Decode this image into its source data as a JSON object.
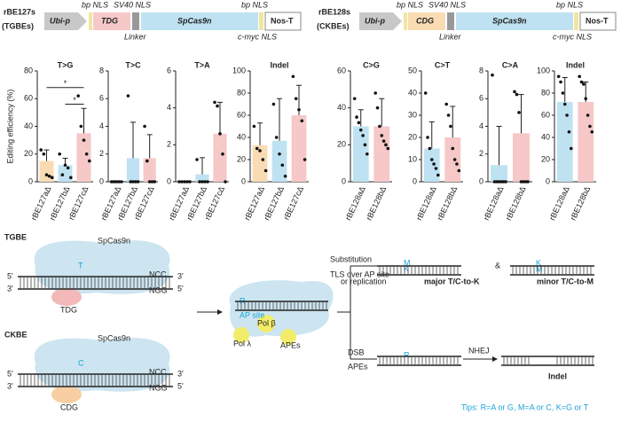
{
  "constructs": [
    {
      "name": "rBE127s",
      "sub": "(TGBEs)",
      "promoter": "Ubi-p",
      "enzyme": "TDG",
      "cas": "SpCas9n",
      "term": "Nos-T",
      "above": [
        "bp NLS",
        "SV40 NLS",
        "bp NLS"
      ],
      "below": [
        "Linker",
        "c-myc NLS"
      ]
    },
    {
      "name": "rBE128s",
      "sub": "(CKBEs)",
      "promoter": "Ubi-p",
      "enzyme": "CDG",
      "cas": "SpCas9n",
      "term": "Nos-T",
      "above": [
        "bp NLS",
        "SV40 NLS",
        "bp NLS"
      ],
      "below": [
        "Linker",
        "c-myc NLS"
      ]
    }
  ],
  "chart_data": [
    {
      "type": "bar",
      "title": "T>G",
      "ylabel": "Editing efficiency (%)",
      "categories": [
        "rBE127aΔ",
        "rBE127bΔ",
        "rBE127cΔ"
      ],
      "values": [
        15,
        12,
        35
      ],
      "errors": [
        8,
        5,
        18
      ],
      "colors": [
        "#f9dcb4",
        "#bfe2f2",
        "#f6c8c8"
      ],
      "points": [
        [
          23,
          20,
          5,
          4,
          3
        ],
        [
          20,
          5,
          12,
          10,
          3
        ],
        [
          62,
          40,
          30,
          20,
          15
        ]
      ],
      "ylim": [
        0,
        80
      ],
      "yticks": [
        0,
        20,
        40,
        60,
        80
      ],
      "annotations": [
        "*",
        "*"
      ]
    },
    {
      "type": "bar",
      "title": "T>C",
      "categories": [
        "rBE127aΔ",
        "rBE127bΔ",
        "rBE127cΔ"
      ],
      "values": [
        0,
        1.7,
        1.7
      ],
      "errors": [
        0,
        2.6,
        1.7
      ],
      "colors": [
        "#f9dcb4",
        "#bfe2f2",
        "#f6c8c8"
      ],
      "points": [
        [
          0,
          0,
          0,
          0,
          0
        ],
        [
          6.2,
          0,
          0,
          0,
          0
        ],
        [
          4,
          1.5,
          0,
          0,
          0
        ]
      ],
      "ylim": [
        0,
        8
      ],
      "yticks": [
        0,
        2,
        4,
        6,
        8
      ]
    },
    {
      "type": "bar",
      "title": "T>A",
      "categories": [
        "rBE127aΔ",
        "rBE127bΔ",
        "rBE127cΔ"
      ],
      "values": [
        0,
        0.4,
        2.6
      ],
      "errors": [
        0,
        0.9,
        1.7
      ],
      "colors": [
        "#f9dcb4",
        "#bfe2f2",
        "#f6c8c8"
      ],
      "points": [
        [
          0,
          0,
          0,
          0,
          0
        ],
        [
          1.2,
          0,
          0,
          0,
          0
        ],
        [
          4.3,
          4.1,
          2.6,
          1.5,
          0
        ]
      ],
      "ylim": [
        0,
        6
      ],
      "yticks": [
        0,
        2,
        4,
        6
      ]
    },
    {
      "type": "bar",
      "title": "Indel",
      "categories": [
        "rBE127aΔ",
        "rBE127bΔ",
        "rBE127cΔ"
      ],
      "values": [
        33,
        37,
        60
      ],
      "errors": [
        20,
        38,
        27
      ],
      "colors": [
        "#f9dcb4",
        "#bfe2f2",
        "#f6c8c8"
      ],
      "points": [
        [
          50,
          30,
          28,
          20,
          10
        ],
        [
          70,
          40,
          25,
          15,
          5
        ],
        [
          95,
          75,
          65,
          55,
          20
        ]
      ],
      "ylim": [
        0,
        100
      ],
      "yticks": [
        0,
        20,
        40,
        60,
        80,
        100
      ]
    },
    {
      "type": "bar",
      "title": "C>G",
      "categories": [
        "rBE128aΔ",
        "rBE128bΔ"
      ],
      "values": [
        30,
        30
      ],
      "errors": [
        9,
        15
      ],
      "colors": [
        "#bfe2f2",
        "#f6c8c8"
      ],
      "points": [
        [
          45,
          35,
          32,
          28,
          25,
          20,
          15
        ],
        [
          48,
          40,
          30,
          25,
          22,
          20,
          18
        ]
      ],
      "ylim": [
        0,
        60
      ],
      "yticks": [
        0,
        20,
        40,
        60
      ]
    },
    {
      "type": "bar",
      "title": "C>T",
      "categories": [
        "rBE128aΔ",
        "rBE128bΔ"
      ],
      "values": [
        15,
        20
      ],
      "errors": [
        12,
        14
      ],
      "colors": [
        "#bfe2f2",
        "#f6c8c8"
      ],
      "points": [
        [
          40,
          20,
          15,
          10,
          8,
          6,
          3
        ],
        [
          35,
          30,
          25,
          15,
          10,
          8,
          5
        ]
      ],
      "ylim": [
        0,
        50
      ],
      "yticks": [
        0,
        10,
        20,
        30,
        40,
        50
      ]
    },
    {
      "type": "bar",
      "title": "C>A",
      "categories": [
        "rBE128aΔ",
        "rBE128bΔ"
      ],
      "values": [
        1.2,
        3.5
      ],
      "errors": [
        2.8,
        2.8
      ],
      "colors": [
        "#bfe2f2",
        "#f6c8c8"
      ],
      "points": [
        [
          7.7,
          0,
          0,
          0,
          0,
          0,
          0
        ],
        [
          6.5,
          6.3,
          5,
          0,
          0,
          0,
          0
        ]
      ],
      "ylim": [
        0,
        8
      ],
      "yticks": [
        0,
        2,
        4,
        6,
        8
      ]
    },
    {
      "type": "bar",
      "title": "Indel",
      "categories": [
        "rBE128aΔ",
        "rBE128bΔ"
      ],
      "values": [
        72,
        72
      ],
      "errors": [
        22,
        18
      ],
      "colors": [
        "#bfe2f2",
        "#f6c8c8"
      ],
      "points": [
        [
          95,
          90,
          80,
          70,
          60,
          45,
          30
        ],
        [
          95,
          90,
          88,
          75,
          60,
          50,
          45
        ]
      ],
      "ylim": [
        0,
        100
      ],
      "yticks": [
        0,
        20,
        40,
        60,
        80,
        100
      ]
    }
  ],
  "diagram": {
    "tgbe": "TGBE",
    "ckbe": "CKBE",
    "cas": "SpCas9n",
    "tdg": "TDG",
    "cdg": "CDG",
    "ncc": "NCC",
    "ngg": "NGG",
    "five": "5'",
    "three": "3'",
    "t": "T",
    "c": "C",
    "r": "R",
    "ap": "AP site",
    "polb": "Pol β",
    "poll": "Pol λ",
    "apes": "APEs",
    "sub": "Substitution",
    "tls": "TLS over AP site",
    "tls2": "or replication",
    "major": "major T/C-to-K",
    "amp": "&",
    "minor": "minor T/C-to-M",
    "k": "K",
    "m": "M",
    "dsb": "DSB",
    "apes2": "APEs",
    "nhej": "NHEJ",
    "indel": "Indel",
    "tips": "Tips: R=A or G, M=A or C, K=G or T"
  }
}
